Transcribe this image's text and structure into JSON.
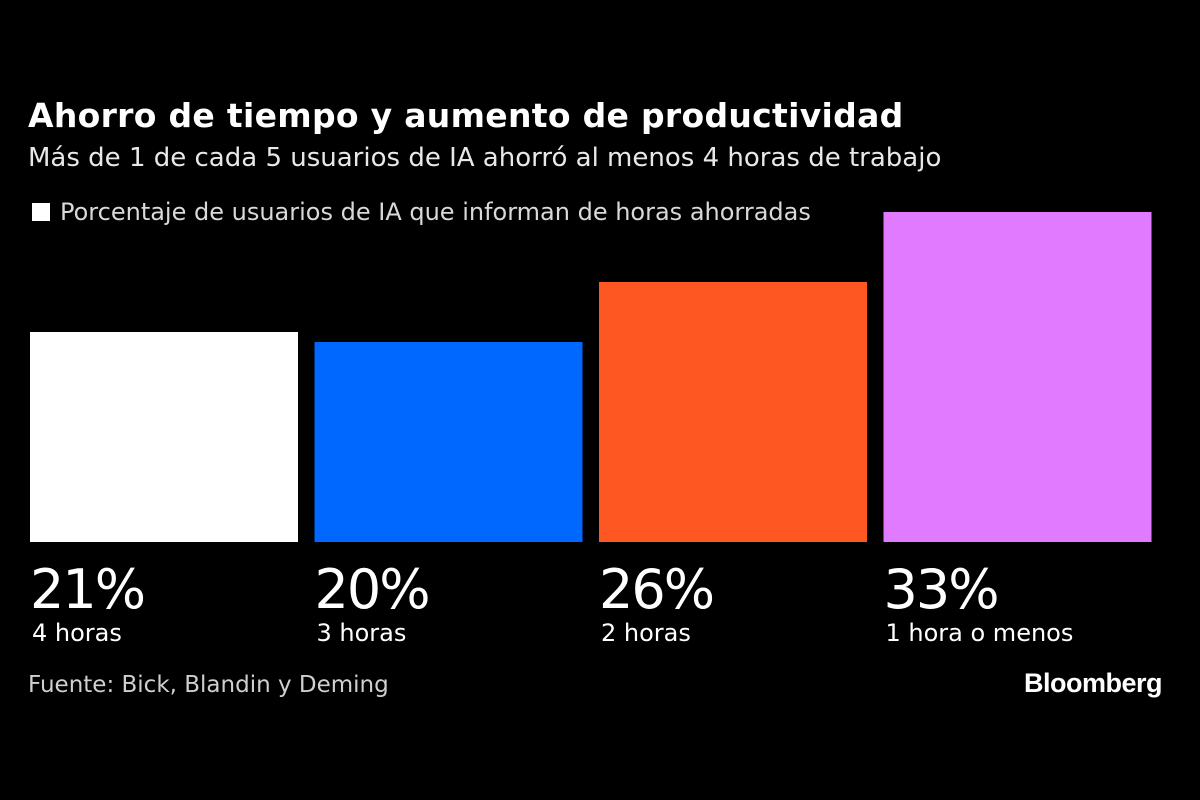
{
  "chart_data": {
    "type": "bar",
    "title": "Ahorro de tiempo y aumento de productividad",
    "subtitle": "Más de 1 de cada 5 usuarios de IA ahorró al menos 4 horas de trabajo",
    "series": [
      {
        "name": "Porcentaje de usuarios de IA que informan de horas ahorradas",
        "values": [
          21,
          20,
          26,
          33
        ]
      }
    ],
    "categories": [
      "4 horas",
      "3 horas",
      "2 horas",
      "1 hora o menos"
    ],
    "values": [
      21,
      20,
      26,
      33
    ],
    "value_labels": [
      "21%",
      "20%",
      "26%",
      "33%"
    ],
    "colors": [
      "#ffffff",
      "#0068ff",
      "#ff5722",
      "#e07aff"
    ],
    "legend_color": "#ffffff",
    "ylim": [
      0,
      35
    ],
    "grid": false,
    "legend_position": "top-left"
  },
  "footer": {
    "source": "Fuente: Bick, Blandin y Deming",
    "brand": "Bloomberg"
  }
}
